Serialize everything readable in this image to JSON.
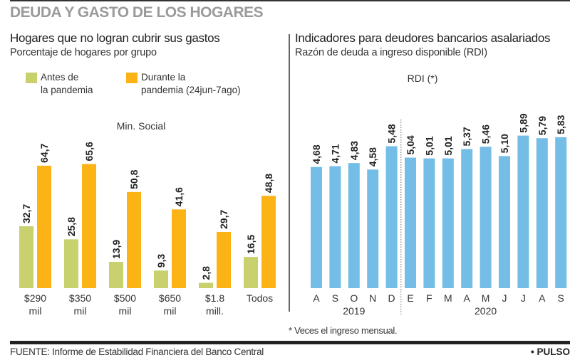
{
  "header": {
    "main_title": "DEUDA Y GASTO DE LOS HOGARES"
  },
  "footer": {
    "source": "FUENTE: Informe de Estabilidad Financiera del Banco Central",
    "brand": "• PULSO"
  },
  "colors": {
    "antes": "#c9d16e",
    "durante": "#fbb316",
    "rdi": "#74bde6"
  },
  "chart_data": [
    {
      "type": "bar",
      "title": "Hogares que no logran cubrir sus gastos",
      "subtitle": "Porcentaje de hogares por grupo",
      "axis_title": "Min. Social",
      "legend": {
        "placement": "top-left",
        "entries": [
          {
            "line1": "Antes de",
            "line2": "la pandemia"
          },
          {
            "line1": "Durante la",
            "line2": "pandemia (24jun-7ago)"
          }
        ]
      },
      "categories": [
        {
          "line1": "$290",
          "line2": "mil"
        },
        {
          "line1": "$350",
          "line2": "mil"
        },
        {
          "line1": "$500",
          "line2": "mil"
        },
        {
          "line1": "$650",
          "line2": "mil"
        },
        {
          "line1": "$1.8",
          "line2": "mill."
        },
        {
          "line1": "Todos",
          "line2": ""
        }
      ],
      "series": [
        {
          "name": "Antes de la pandemia",
          "values": [
            32.7,
            25.8,
            13.9,
            9.3,
            2.8,
            16.5
          ],
          "labels": [
            "32,7",
            "25,8",
            "13,9",
            "9,3",
            "2,8",
            "16,5"
          ]
        },
        {
          "name": "Durante la pandemia (24jun-7ago)",
          "values": [
            64.7,
            65.6,
            50.8,
            41.6,
            29.7,
            48.8
          ],
          "labels": [
            "64,7",
            "65,6",
            "50,8",
            "41,6",
            "29,7",
            "48,8"
          ]
        }
      ],
      "ylim": [
        0,
        70
      ],
      "grid": false
    },
    {
      "type": "bar",
      "title": "Indicadores para deudores bancarios asalariados",
      "subtitle": "Razón de deuda a ingreso disponible (RDI)",
      "axis_title": "RDI (*)",
      "categories": [
        "A",
        "S",
        "O",
        "N",
        "D",
        "E",
        "F",
        "M",
        "A",
        "M",
        "J",
        "J",
        "A",
        "S"
      ],
      "year_labels": [
        {
          "label": "2019",
          "from": 0,
          "to": 4
        },
        {
          "label": "2020",
          "from": 5,
          "to": 13
        }
      ],
      "values": [
        4.68,
        4.71,
        4.83,
        4.58,
        5.48,
        5.04,
        5.01,
        5.01,
        5.37,
        5.46,
        5.1,
        5.89,
        5.79,
        5.83
      ],
      "labels": [
        "4,68",
        "4,71",
        "4,83",
        "4,58",
        "5,48",
        "5,04",
        "5,01",
        "5,01",
        "5,37",
        "5,46",
        "5,10",
        "5,89",
        "5,79",
        "5,83"
      ],
      "ylim": [
        0,
        6.5
      ],
      "grid": false,
      "note": "* Veces el ingreso mensual."
    }
  ]
}
